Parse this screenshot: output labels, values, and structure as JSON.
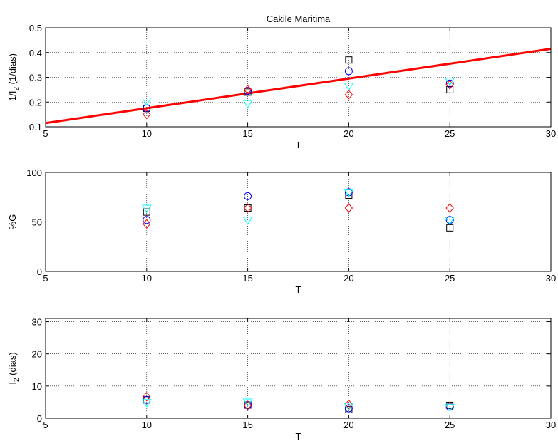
{
  "chart_data": [
    {
      "type": "scatter",
      "title": "Cakile Maritima",
      "xlabel": "T",
      "ylabel_main": "1/I",
      "ylabel_sub": "2",
      "ylabel_tail": " (1/dias)",
      "xlim": [
        5,
        30
      ],
      "ylim": [
        0.1,
        0.5
      ],
      "x_ticks": [
        5,
        10,
        15,
        20,
        25,
        30
      ],
      "y_ticks": [
        0.1,
        0.2,
        0.3,
        0.4,
        0.5
      ],
      "x_tick_labels": [
        "5",
        "10",
        "15",
        "20",
        "25",
        "30"
      ],
      "y_tick_labels": [
        "0.1",
        "0.2",
        "0.3",
        "0.4",
        "0.5"
      ],
      "x_grid": true,
      "y_grid": true,
      "series": [
        {
          "marker": "square",
          "color": "#000000",
          "x": [
            10,
            15,
            20,
            25
          ],
          "y": [
            0.175,
            0.24,
            0.37,
            0.25
          ]
        },
        {
          "marker": "circle",
          "color": "#0000ff",
          "x": [
            10,
            15,
            20,
            25
          ],
          "y": [
            0.175,
            0.245,
            0.325,
            0.275
          ]
        },
        {
          "marker": "diamond",
          "color": "#ff0000",
          "x": [
            10,
            15,
            20,
            25
          ],
          "y": [
            0.15,
            0.25,
            0.23,
            0.27
          ]
        },
        {
          "marker": "triangle-down",
          "color": "#00ffff",
          "x": [
            10,
            15,
            20,
            25
          ],
          "y": [
            0.205,
            0.195,
            0.265,
            0.285
          ]
        }
      ],
      "fit_line": {
        "color": "#ff0000",
        "x": [
          5,
          30
        ],
        "y": [
          0.115,
          0.415
        ]
      }
    },
    {
      "type": "scatter",
      "xlabel": "T",
      "ylabel_main": "%G",
      "ylabel_sub": "",
      "ylabel_tail": "",
      "xlim": [
        5,
        30
      ],
      "ylim": [
        0,
        100
      ],
      "x_ticks": [
        5,
        10,
        15,
        20,
        25,
        30
      ],
      "y_ticks": [
        0,
        50,
        100
      ],
      "x_tick_labels": [
        "5",
        "10",
        "15",
        "20",
        "25",
        "30"
      ],
      "y_tick_labels": [
        "0",
        "50",
        "100"
      ],
      "x_grid": true,
      "y_grid": true,
      "series": [
        {
          "marker": "square",
          "color": "#000000",
          "x": [
            10,
            15,
            20,
            25
          ],
          "y": [
            60,
            64,
            77,
            44
          ]
        },
        {
          "marker": "circle",
          "color": "#0000ff",
          "x": [
            10,
            15,
            20,
            25
          ],
          "y": [
            52,
            76,
            80,
            52
          ]
        },
        {
          "marker": "diamond",
          "color": "#ff0000",
          "x": [
            10,
            15,
            20,
            25
          ],
          "y": [
            48,
            64,
            64,
            64
          ]
        },
        {
          "marker": "triangle-down",
          "color": "#00ffff",
          "x": [
            10,
            15,
            20,
            25
          ],
          "y": [
            64,
            52,
            80,
            52
          ]
        }
      ]
    },
    {
      "type": "scatter",
      "xlabel": "T",
      "ylabel_main": "I",
      "ylabel_sub": "2",
      "ylabel_tail": " (dias)",
      "xlim": [
        5,
        30
      ],
      "ylim": [
        0,
        31
      ],
      "x_ticks": [
        5,
        10,
        15,
        20,
        25,
        30
      ],
      "y_ticks": [
        0,
        10,
        20,
        30
      ],
      "x_tick_labels": [
        "5",
        "10",
        "15",
        "20",
        "25",
        "30"
      ],
      "y_tick_labels": [
        "0",
        "10",
        "20",
        "30"
      ],
      "x_grid": true,
      "y_grid": true,
      "series": [
        {
          "marker": "square",
          "color": "#000000",
          "x": [
            10,
            15,
            20,
            25
          ],
          "y": [
            5.7,
            4.1,
            2.7,
            4.0
          ]
        },
        {
          "marker": "circle",
          "color": "#0000ff",
          "x": [
            10,
            15,
            20,
            25
          ],
          "y": [
            5.7,
            4.1,
            3.1,
            3.6
          ]
        },
        {
          "marker": "diamond",
          "color": "#ff0000",
          "x": [
            10,
            15,
            20,
            25
          ],
          "y": [
            6.7,
            4.0,
            4.3,
            3.7
          ]
        },
        {
          "marker": "triangle-down",
          "color": "#00ffff",
          "x": [
            10,
            15,
            20,
            25
          ],
          "y": [
            4.9,
            5.1,
            3.8,
            3.5
          ]
        }
      ]
    }
  ]
}
